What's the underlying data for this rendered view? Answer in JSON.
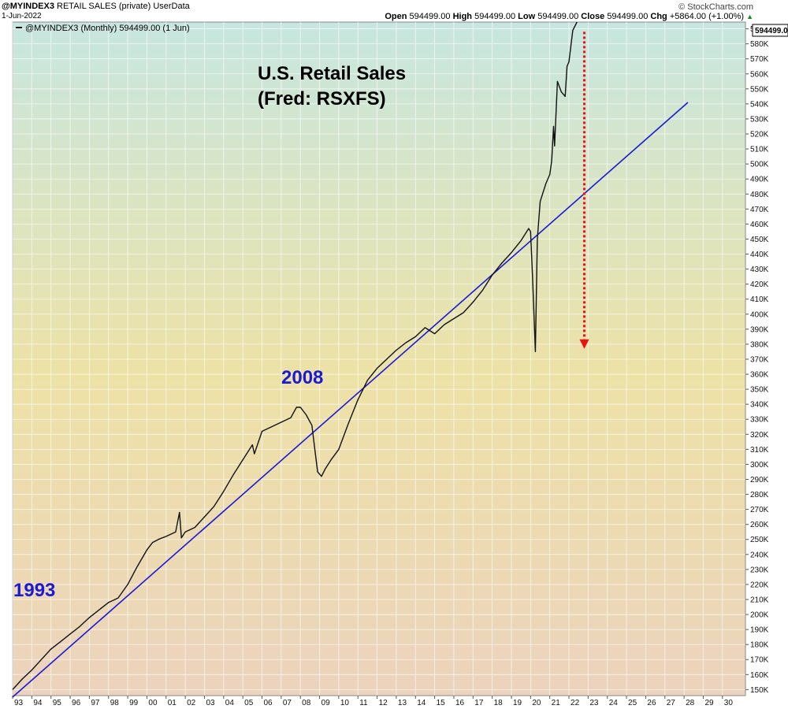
{
  "header": {
    "symbol": "@MYINDEX3",
    "name": "RETAIL SALES (private)",
    "source": "UserData",
    "date": "1-Jun-2022",
    "credit": "© StockCharts.com",
    "open_label": "Open",
    "open": "594499.00",
    "high_label": "High",
    "high": "594499.00",
    "low_label": "Low",
    "low": "594499.00",
    "close_label": "Close",
    "close": "594499.00",
    "chg_label": "Chg",
    "chg": "+5864.00 (+1.00%)",
    "chg_arrow": "▲"
  },
  "legend": {
    "text": "@MYINDEX3 (Monthly) 594499.00 (1 Jun)"
  },
  "last_value_label": "594499.0",
  "colors": {
    "price": "#111111",
    "trend": "#1a1ad6",
    "arrow": "#ee1111",
    "annotation": "#1a1ad6",
    "bg_top": "#c7e6e0",
    "bg_mid": "#ede2a6",
    "bg_bottom": "#ecd3bd"
  },
  "annotations": {
    "title_line1": "U.S. Retail Sales",
    "title_line2": "(Fred: RSXFS)",
    "label_2008": "2008",
    "label_1993": "1993"
  },
  "chart_data": {
    "type": "line",
    "title": "U.S. Retail Sales (Fred: RSXFS)",
    "ylim": [
      146000,
      594499
    ],
    "y_ticks": [
      150000,
      160000,
      170000,
      180000,
      190000,
      200000,
      210000,
      220000,
      230000,
      240000,
      250000,
      260000,
      270000,
      280000,
      290000,
      300000,
      310000,
      320000,
      330000,
      340000,
      350000,
      360000,
      370000,
      380000,
      390000,
      400000,
      410000,
      420000,
      430000,
      440000,
      450000,
      460000,
      470000,
      480000,
      490000,
      500000,
      510000,
      520000,
      530000,
      540000,
      550000,
      560000,
      570000,
      580000,
      590000
    ],
    "y_tick_labels": [
      "150K",
      "160K",
      "170K",
      "180K",
      "190K",
      "200K",
      "210K",
      "220K",
      "230K",
      "240K",
      "250K",
      "260K",
      "270K",
      "280K",
      "290K",
      "300K",
      "310K",
      "320K",
      "330K",
      "340K",
      "350K",
      "360K",
      "370K",
      "380K",
      "390K",
      "400K",
      "410K",
      "420K",
      "430K",
      "440K",
      "450K",
      "460K",
      "470K",
      "480K",
      "490K",
      "500K",
      "510K",
      "520K",
      "530K",
      "540K",
      "550K",
      "560K",
      "570K",
      "580K",
      "590K"
    ],
    "xlim": [
      1993.0,
      2031.2
    ],
    "x_ticks": [
      1993,
      1994,
      1995,
      1996,
      1997,
      1998,
      1999,
      2000,
      2001,
      2002,
      2003,
      2004,
      2005,
      2006,
      2007,
      2008,
      2009,
      2010,
      2011,
      2012,
      2013,
      2014,
      2015,
      2016,
      2017,
      2018,
      2019,
      2020,
      2021,
      2022,
      2023,
      2024,
      2025,
      2026,
      2027,
      2028,
      2029,
      2030
    ],
    "x_tick_labels": [
      "93",
      "94",
      "95",
      "96",
      "97",
      "98",
      "99",
      "00",
      "01",
      "02",
      "03",
      "04",
      "05",
      "06",
      "07",
      "08",
      "09",
      "10",
      "11",
      "12",
      "13",
      "14",
      "15",
      "16",
      "17",
      "18",
      "19",
      "20",
      "21",
      "22",
      "23",
      "24",
      "25",
      "26",
      "27",
      "28",
      "29",
      "30"
    ],
    "grid": true,
    "series": [
      {
        "name": "@MYINDEX3 (Monthly)",
        "x": [
          1993.0,
          1993.5,
          1994.0,
          1994.5,
          1995.0,
          1995.5,
          1996.0,
          1996.5,
          1997.0,
          1997.5,
          1998.0,
          1998.5,
          1999.0,
          1999.5,
          2000.0,
          2000.3,
          2000.6,
          2001.0,
          2001.5,
          2001.7,
          2001.8,
          2002.0,
          2002.5,
          2003.0,
          2003.5,
          2004.0,
          2004.5,
          2005.0,
          2005.5,
          2005.6,
          2006.0,
          2006.5,
          2007.0,
          2007.5,
          2007.8,
          2008.0,
          2008.3,
          2008.6,
          2008.8,
          2008.9,
          2009.1,
          2009.3,
          2009.6,
          2010.0,
          2010.5,
          2011.0,
          2011.5,
          2012.0,
          2012.5,
          2013.0,
          2013.5,
          2014.0,
          2014.5,
          2015.0,
          2015.5,
          2016.0,
          2016.5,
          2017.0,
          2017.5,
          2018.0,
          2018.5,
          2019.0,
          2019.5,
          2019.9,
          2020.0,
          2020.1,
          2020.25,
          2020.35,
          2020.5,
          2020.8,
          2021.0,
          2021.1,
          2021.2,
          2021.25,
          2021.4,
          2021.6,
          2021.8,
          2021.9,
          2022.0,
          2022.2,
          2022.42
        ],
        "y": [
          150000,
          157000,
          163000,
          170000,
          177000,
          182000,
          187000,
          192000,
          198000,
          203000,
          208000,
          211000,
          220000,
          232000,
          243000,
          248000,
          250000,
          252000,
          255000,
          268000,
          251000,
          255000,
          258000,
          265000,
          272000,
          282000,
          293000,
          303000,
          313000,
          307000,
          322000,
          325000,
          328000,
          331000,
          338000,
          338000,
          333000,
          326000,
          305000,
          295000,
          292000,
          297000,
          303000,
          310000,
          327000,
          343000,
          356000,
          364000,
          370000,
          376000,
          381000,
          385000,
          391000,
          387000,
          393000,
          397000,
          401000,
          408000,
          416000,
          426000,
          434000,
          441000,
          449000,
          457000,
          455000,
          425000,
          375000,
          450000,
          475000,
          487000,
          493000,
          502000,
          525000,
          512000,
          555000,
          548000,
          545000,
          565000,
          568000,
          589000,
          594499
        ]
      },
      {
        "name": "",
        "x": [
          1993.0,
          2028.2
        ],
        "y": [
          145000,
          541000
        ]
      }
    ],
    "annotations": [
      {
        "text": "U.S. Retail Sales"
      },
      {
        "text": "(Fred: RSXFS)"
      },
      {
        "text": "2008",
        "x": 2008.0
      },
      {
        "text": "1993",
        "x": 1993.0
      }
    ],
    "arrow": {
      "x": 2022.8,
      "y_from": 588000,
      "y_to": 378000
    }
  }
}
